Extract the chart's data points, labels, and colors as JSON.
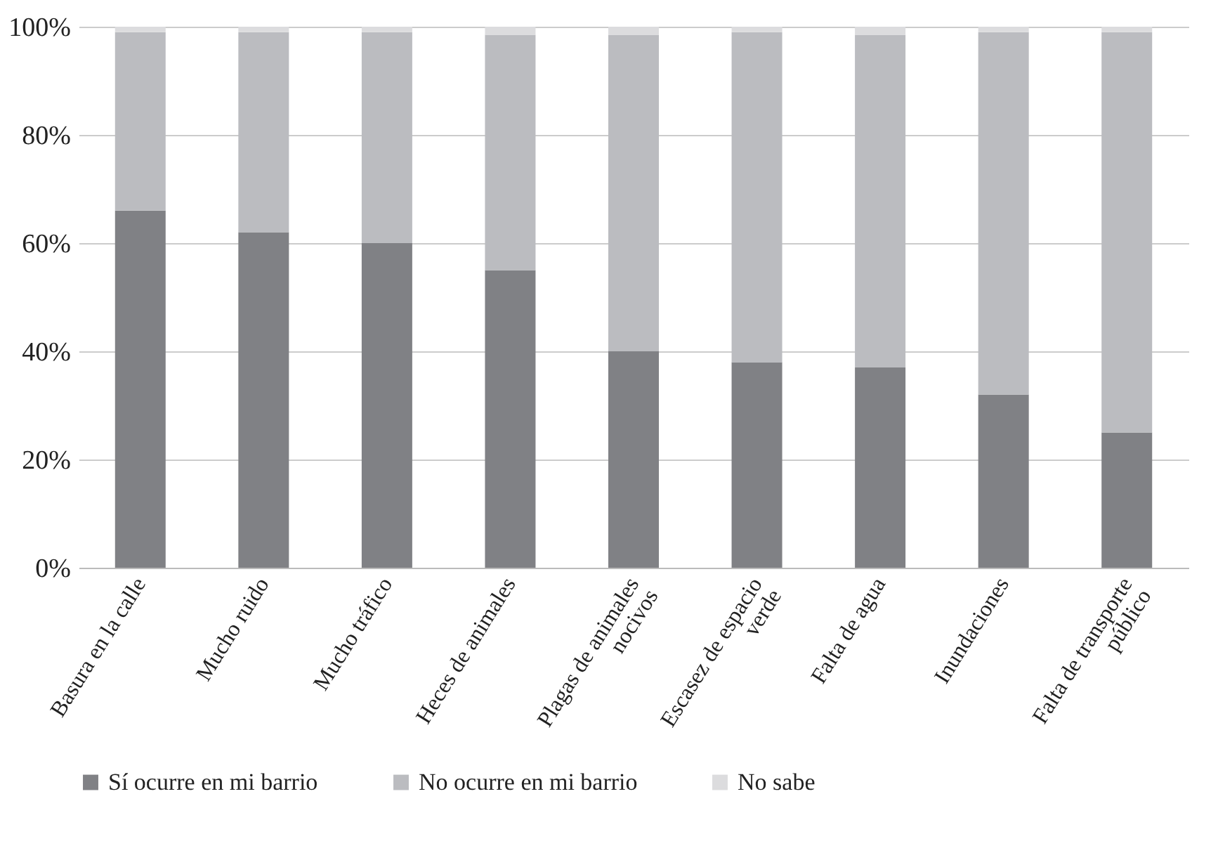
{
  "chart_data": {
    "type": "bar",
    "stacked": true,
    "categories": [
      "Basura en la calle",
      "Mucho ruido",
      "Mucho tráfico",
      "Heces de animales",
      "Plagas de animales\nnocivos",
      "Escasez de espacio\nverde",
      "Falta de agua",
      "Inundaciones",
      "Falta de transporte\npúblico"
    ],
    "series": [
      {
        "name": "Sí ocurre en mi barrio",
        "color": "#808185",
        "values": [
          66,
          62,
          60,
          55,
          40,
          38,
          37,
          32,
          25
        ]
      },
      {
        "name": "No ocurre en mi barrio",
        "color": "#bbbcc0",
        "values": [
          33,
          37,
          39,
          43.5,
          58.5,
          61,
          61.5,
          67,
          74
        ]
      },
      {
        "name": "No sabe",
        "color": "#dcdcde",
        "values": [
          1,
          1,
          1,
          1.5,
          1.5,
          1,
          1.5,
          1,
          1
        ]
      }
    ],
    "ylim": [
      0,
      100
    ],
    "yticks": [
      {
        "value": 0,
        "label": "0%"
      },
      {
        "value": 20,
        "label": "20%"
      },
      {
        "value": 40,
        "label": "40%"
      },
      {
        "value": 60,
        "label": "60%"
      },
      {
        "value": 80,
        "label": "80%"
      },
      {
        "value": 100,
        "label": "100%"
      }
    ],
    "grid": "y",
    "legend": "bottom"
  }
}
